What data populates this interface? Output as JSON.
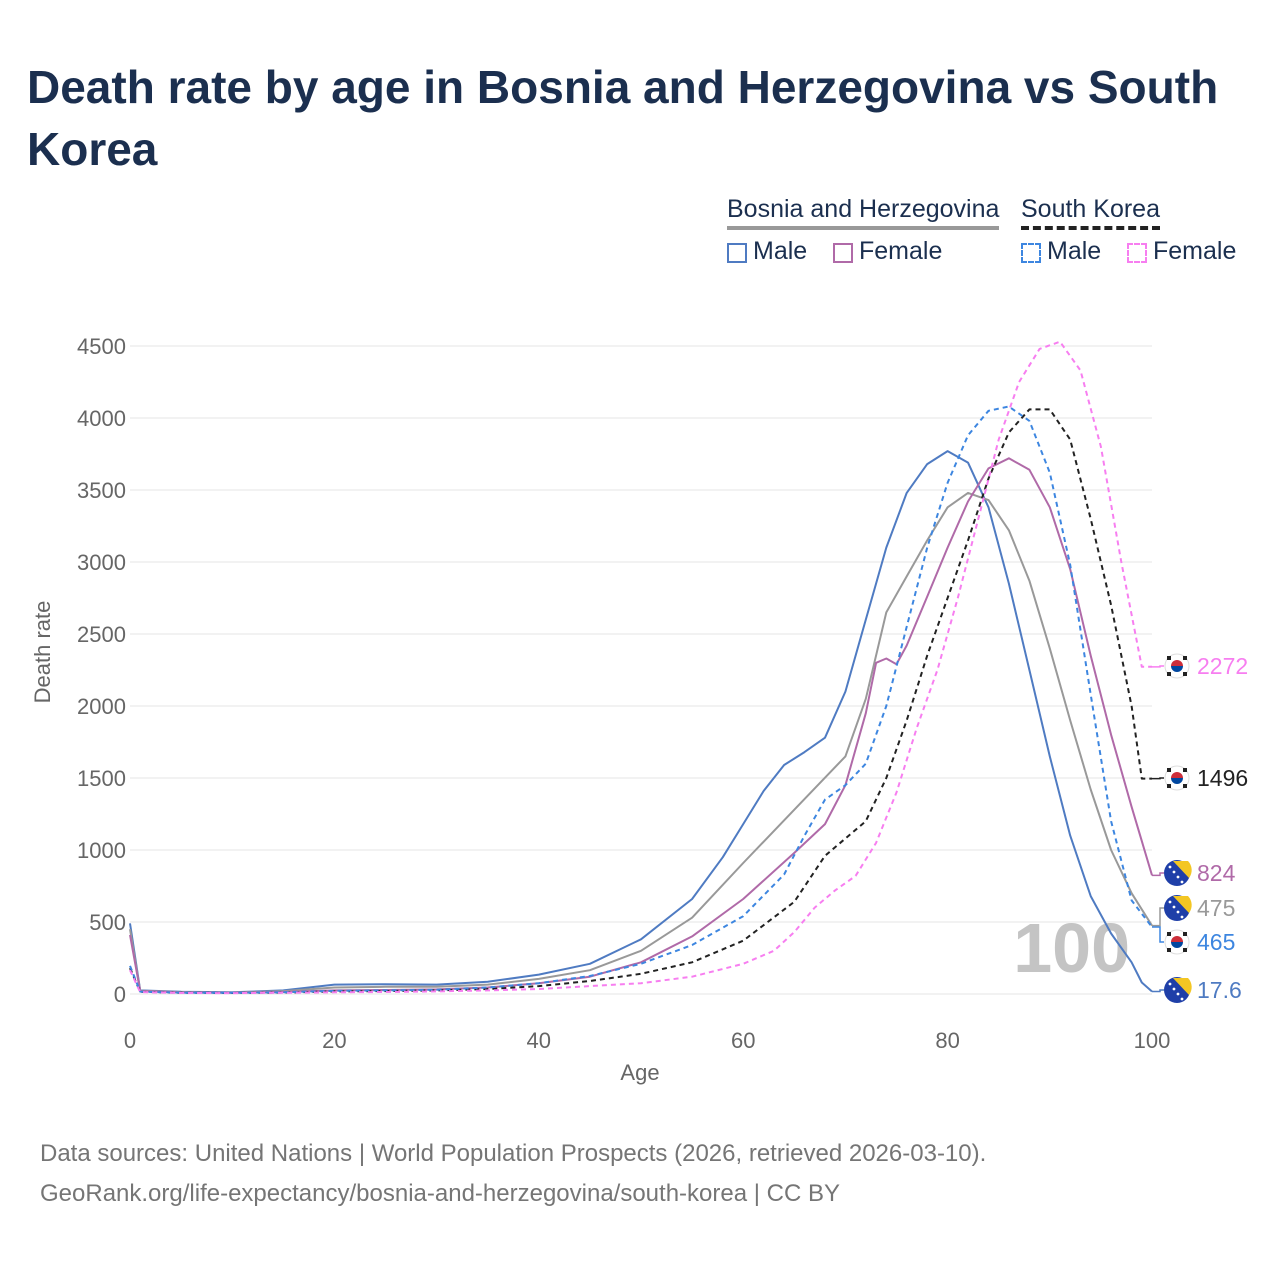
{
  "title": "Death rate by age in Bosnia and Herzegovina vs South Korea",
  "legend": {
    "groups": [
      {
        "name": "Bosnia and Herzegovina",
        "items": [
          {
            "label": "Male",
            "color": "#4f7bc2"
          },
          {
            "label": "Female",
            "color": "#b06aa8"
          }
        ]
      },
      {
        "name": "South Korea",
        "items": [
          {
            "label": "Male",
            "color": "#3d86e0"
          },
          {
            "label": "Female",
            "color": "#f77ef0"
          }
        ]
      }
    ]
  },
  "footer": {
    "line1": "Data sources: United Nations | World Population Prospects (2026, retrieved 2026-03-10).",
    "line2": "GeoRank.org/life-expectancy/bosnia-and-herzegovina/south-korea | CC BY"
  },
  "year_watermark": "100",
  "chart_data": {
    "type": "line",
    "xlabel": "Age",
    "ylabel": "Death rate",
    "xlim": [
      0,
      100
    ],
    "ylim": [
      0,
      4500
    ],
    "x_ticks": [
      0,
      20,
      40,
      60,
      80,
      100
    ],
    "y_ticks": [
      0,
      500,
      1000,
      1500,
      2000,
      2500,
      3000,
      3500,
      4000,
      4500
    ],
    "series": [
      {
        "name": "Bosnia and Herzegovina Male",
        "country": "Bosnia and Herzegovina",
        "color": "#4f7bc2",
        "dash": false,
        "end_label": "17.6",
        "flag": "bosnia-flag-icon",
        "points": [
          [
            0,
            490
          ],
          [
            1,
            25
          ],
          [
            5,
            15
          ],
          [
            10,
            12
          ],
          [
            15,
            25
          ],
          [
            20,
            65
          ],
          [
            25,
            68
          ],
          [
            30,
            65
          ],
          [
            35,
            85
          ],
          [
            40,
            135
          ],
          [
            45,
            210
          ],
          [
            50,
            380
          ],
          [
            55,
            660
          ],
          [
            58,
            950
          ],
          [
            60,
            1180
          ],
          [
            62,
            1410
          ],
          [
            64,
            1590
          ],
          [
            66,
            1680
          ],
          [
            68,
            1780
          ],
          [
            70,
            2100
          ],
          [
            72,
            2600
          ],
          [
            74,
            3100
          ],
          [
            76,
            3480
          ],
          [
            78,
            3680
          ],
          [
            80,
            3770
          ],
          [
            82,
            3690
          ],
          [
            84,
            3380
          ],
          [
            86,
            2850
          ],
          [
            88,
            2250
          ],
          [
            90,
            1650
          ],
          [
            92,
            1100
          ],
          [
            94,
            680
          ],
          [
            96,
            420
          ],
          [
            98,
            220
          ],
          [
            99,
            80
          ],
          [
            100,
            17.6
          ]
        ]
      },
      {
        "name": "Bosnia and Herzegovina Total",
        "country": "Bosnia and Herzegovina",
        "color": "#999999",
        "dash": false,
        "end_label": "475",
        "flag": "bosnia-flag-icon",
        "points": [
          [
            0,
            450
          ],
          [
            1,
            22
          ],
          [
            5,
            13
          ],
          [
            10,
            10
          ],
          [
            15,
            20
          ],
          [
            20,
            45
          ],
          [
            25,
            50
          ],
          [
            30,
            50
          ],
          [
            35,
            65
          ],
          [
            40,
            105
          ],
          [
            45,
            165
          ],
          [
            50,
            300
          ],
          [
            55,
            530
          ],
          [
            60,
            910
          ],
          [
            65,
            1280
          ],
          [
            70,
            1650
          ],
          [
            72,
            2050
          ],
          [
            74,
            2650
          ],
          [
            76,
            2900
          ],
          [
            78,
            3150
          ],
          [
            80,
            3380
          ],
          [
            82,
            3480
          ],
          [
            84,
            3430
          ],
          [
            86,
            3220
          ],
          [
            88,
            2870
          ],
          [
            90,
            2400
          ],
          [
            92,
            1900
          ],
          [
            94,
            1420
          ],
          [
            96,
            1000
          ],
          [
            98,
            700
          ],
          [
            100,
            475
          ]
        ]
      },
      {
        "name": "Bosnia and Herzegovina Female",
        "country": "Bosnia and Herzegovina",
        "color": "#b06aa8",
        "dash": false,
        "end_label": "824",
        "flag": "bosnia-flag-icon",
        "points": [
          [
            0,
            410
          ],
          [
            1,
            20
          ],
          [
            5,
            11
          ],
          [
            10,
            9
          ],
          [
            15,
            14
          ],
          [
            20,
            25
          ],
          [
            25,
            28
          ],
          [
            30,
            32
          ],
          [
            35,
            45
          ],
          [
            40,
            75
          ],
          [
            45,
            120
          ],
          [
            50,
            220
          ],
          [
            55,
            400
          ],
          [
            60,
            660
          ],
          [
            65,
            980
          ],
          [
            68,
            1180
          ],
          [
            70,
            1450
          ],
          [
            72,
            1950
          ],
          [
            73,
            2300
          ],
          [
            74,
            2330
          ],
          [
            75,
            2290
          ],
          [
            76,
            2420
          ],
          [
            78,
            2760
          ],
          [
            80,
            3100
          ],
          [
            82,
            3420
          ],
          [
            84,
            3650
          ],
          [
            86,
            3720
          ],
          [
            88,
            3640
          ],
          [
            90,
            3380
          ],
          [
            92,
            2950
          ],
          [
            94,
            2350
          ],
          [
            96,
            1800
          ],
          [
            98,
            1300
          ],
          [
            100,
            824
          ]
        ]
      },
      {
        "name": "South Korea Total",
        "country": "South Korea",
        "color": "#222222",
        "dash": true,
        "end_label": "1496",
        "flag": "korea-flag-icon",
        "points": [
          [
            0,
            180
          ],
          [
            1,
            15
          ],
          [
            5,
            8
          ],
          [
            10,
            7
          ],
          [
            15,
            10
          ],
          [
            20,
            18
          ],
          [
            25,
            20
          ],
          [
            30,
            25
          ],
          [
            35,
            35
          ],
          [
            40,
            55
          ],
          [
            45,
            90
          ],
          [
            50,
            140
          ],
          [
            55,
            220
          ],
          [
            60,
            370
          ],
          [
            65,
            640
          ],
          [
            68,
            960
          ],
          [
            70,
            1080
          ],
          [
            72,
            1200
          ],
          [
            74,
            1500
          ],
          [
            76,
            1900
          ],
          [
            78,
            2350
          ],
          [
            80,
            2750
          ],
          [
            82,
            3150
          ],
          [
            84,
            3580
          ],
          [
            86,
            3900
          ],
          [
            88,
            4060
          ],
          [
            90,
            4060
          ],
          [
            92,
            3850
          ],
          [
            94,
            3300
          ],
          [
            96,
            2700
          ],
          [
            98,
            2000
          ],
          [
            99,
            1496
          ],
          [
            100,
            1496
          ]
        ]
      },
      {
        "name": "South Korea Male",
        "country": "South Korea",
        "color": "#3d86e0",
        "dash": true,
        "end_label": "465",
        "flag": "korea-flag-icon",
        "points": [
          [
            0,
            195
          ],
          [
            1,
            17
          ],
          [
            5,
            9
          ],
          [
            10,
            8
          ],
          [
            15,
            12
          ],
          [
            20,
            22
          ],
          [
            25,
            25
          ],
          [
            30,
            30
          ],
          [
            35,
            45
          ],
          [
            40,
            75
          ],
          [
            45,
            125
          ],
          [
            50,
            210
          ],
          [
            55,
            340
          ],
          [
            60,
            540
          ],
          [
            64,
            830
          ],
          [
            66,
            1100
          ],
          [
            68,
            1350
          ],
          [
            70,
            1450
          ],
          [
            72,
            1600
          ],
          [
            74,
            2000
          ],
          [
            76,
            2550
          ],
          [
            78,
            3100
          ],
          [
            80,
            3550
          ],
          [
            82,
            3880
          ],
          [
            84,
            4050
          ],
          [
            86,
            4080
          ],
          [
            88,
            3980
          ],
          [
            90,
            3620
          ],
          [
            92,
            2980
          ],
          [
            94,
            2080
          ],
          [
            96,
            1200
          ],
          [
            98,
            650
          ],
          [
            100,
            465
          ]
        ]
      },
      {
        "name": "South Korea Female",
        "country": "South Korea",
        "color": "#f77ef0",
        "dash": true,
        "end_label": "2272",
        "flag": "korea-flag-icon",
        "points": [
          [
            0,
            165
          ],
          [
            1,
            13
          ],
          [
            5,
            7
          ],
          [
            10,
            6
          ],
          [
            15,
            8
          ],
          [
            20,
            12
          ],
          [
            25,
            14
          ],
          [
            30,
            18
          ],
          [
            35,
            25
          ],
          [
            40,
            35
          ],
          [
            45,
            55
          ],
          [
            50,
            75
          ],
          [
            55,
            120
          ],
          [
            60,
            210
          ],
          [
            63,
            300
          ],
          [
            65,
            430
          ],
          [
            67,
            600
          ],
          [
            69,
            720
          ],
          [
            71,
            820
          ],
          [
            73,
            1050
          ],
          [
            75,
            1400
          ],
          [
            77,
            1850
          ],
          [
            79,
            2250
          ],
          [
            81,
            2750
          ],
          [
            83,
            3300
          ],
          [
            85,
            3850
          ],
          [
            87,
            4250
          ],
          [
            89,
            4480
          ],
          [
            91,
            4530
          ],
          [
            93,
            4330
          ],
          [
            95,
            3800
          ],
          [
            97,
            3000
          ],
          [
            99,
            2272
          ],
          [
            100,
            2272
          ]
        ]
      }
    ]
  }
}
